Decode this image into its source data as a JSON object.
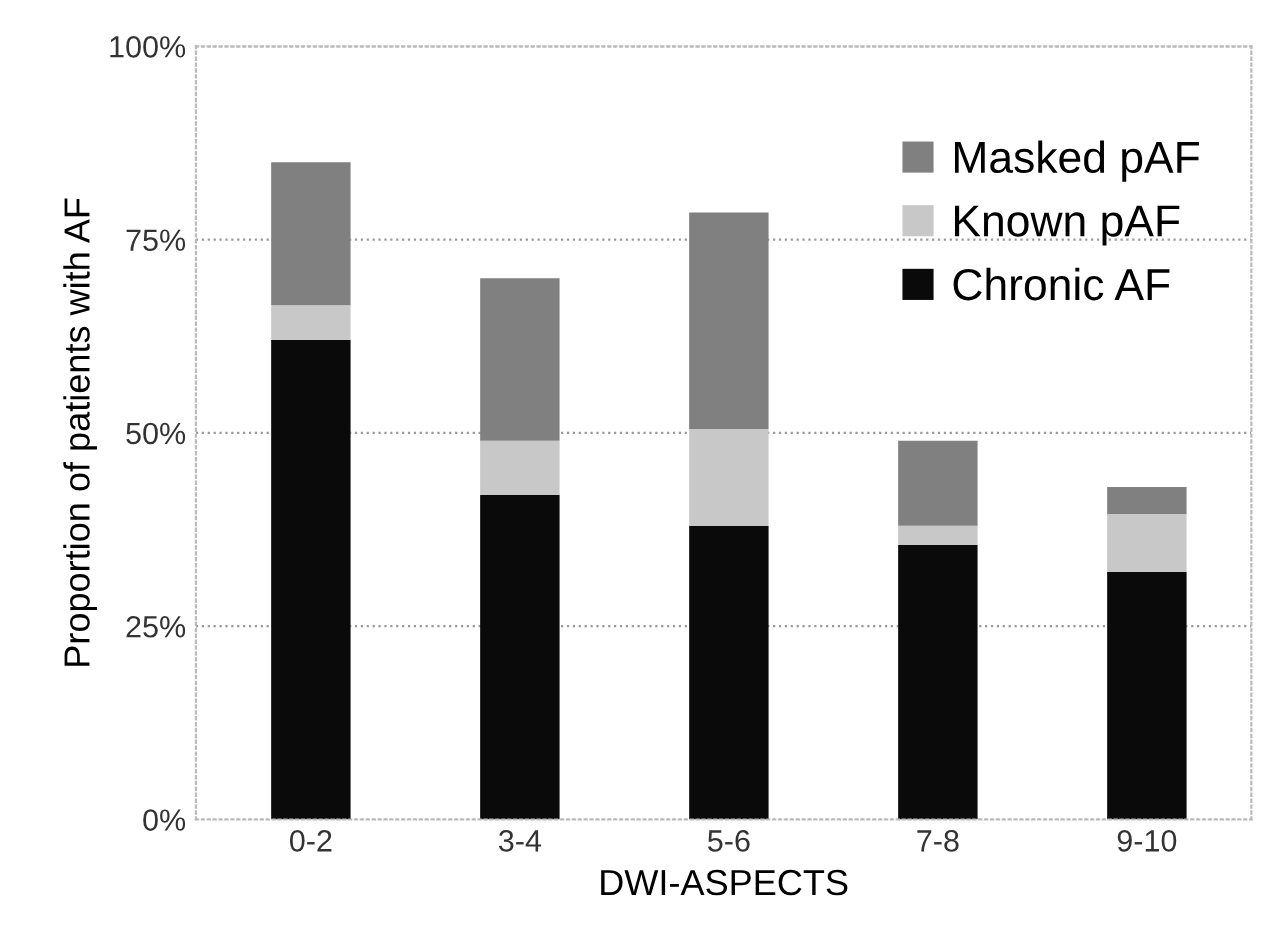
{
  "chart_data": {
    "type": "bar",
    "stacked": true,
    "xlabel": "DWI-ASPECTS",
    "ylabel": "Proportion of patients with AF",
    "categories": [
      "0-2",
      "3-4",
      "5-6",
      "7-8",
      "9-10"
    ],
    "series": [
      {
        "name": "Chronic AF",
        "color": "#0a0a0a",
        "values": [
          62,
          42,
          38,
          35.5,
          32
        ]
      },
      {
        "name": "Known pAF",
        "color": "#c8c8c8",
        "values": [
          4.5,
          7,
          12.5,
          2.5,
          7.5
        ]
      },
      {
        "name": "Masked pAF",
        "color": "#808080",
        "values": [
          18.5,
          21,
          28,
          11,
          3.5
        ]
      }
    ],
    "ylim": [
      0,
      100
    ],
    "yticks": [
      {
        "value": 0,
        "label": "0%"
      },
      {
        "value": 25,
        "label": "25%"
      },
      {
        "value": 50,
        "label": "50%"
      },
      {
        "value": 75,
        "label": "75%"
      },
      {
        "value": 100,
        "label": "100%"
      }
    ],
    "grid": "y",
    "legend": "top right"
  }
}
